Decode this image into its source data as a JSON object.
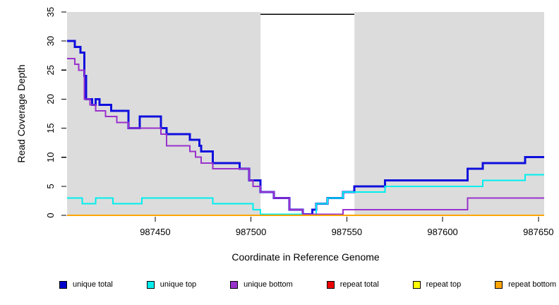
{
  "figure": {
    "xlabel": "Coordinate in Reference Genome",
    "ylabel": "Read Coverage Depth"
  },
  "legend": {
    "items": [
      {
        "label": "unique total",
        "color": "#0000cd"
      },
      {
        "label": "unique top",
        "color": "#00eeee"
      },
      {
        "label": "unique bottom",
        "color": "#9932cc"
      },
      {
        "label": "repeat total",
        "color": "#ee0000"
      },
      {
        "label": "repeat top",
        "color": "#ffff00"
      },
      {
        "label": "repeat bottom",
        "color": "#ffa500"
      }
    ]
  },
  "chart_data": {
    "type": "line",
    "subtype": "step",
    "title": "",
    "xlabel": "Coordinate in Reference Genome",
    "ylabel": "Read Coverage Depth",
    "xlim": [
      987404,
      987653
    ],
    "ylim": [
      0,
      35
    ],
    "x_ticks": [
      987450,
      987500,
      987550,
      987600,
      987650
    ],
    "y_ticks": [
      0,
      5,
      10,
      15,
      20,
      25,
      30,
      35
    ],
    "grid": false,
    "legend_position": "bottom",
    "background_regions": [
      {
        "name": "left-shaded-region",
        "from": 987404,
        "to": 987505,
        "color": "#dcdcdc"
      },
      {
        "name": "right-shaded-region",
        "from": 987554,
        "to": 987653,
        "color": "#dcdcdc"
      }
    ],
    "gap_marker": {
      "from": 987505,
      "to": 987554,
      "at_value": 35,
      "color": "#000000"
    },
    "series": [
      {
        "name": "unique total",
        "color": "#0f0fdd",
        "line_width": 3,
        "zero_lift": 1.5,
        "steps": [
          [
            987404,
            30
          ],
          [
            987408,
            29
          ],
          [
            987411,
            28
          ],
          [
            987413,
            24
          ],
          [
            987414,
            20
          ],
          [
            987417,
            19
          ],
          [
            987419,
            20
          ],
          [
            987421,
            19
          ],
          [
            987427,
            18
          ],
          [
            987436,
            15
          ],
          [
            987442,
            17
          ],
          [
            987453,
            15
          ],
          [
            987456,
            14
          ],
          [
            987468,
            13
          ],
          [
            987473,
            12
          ],
          [
            987474,
            11
          ],
          [
            987480,
            9
          ],
          [
            987494,
            8
          ],
          [
            987499,
            6
          ],
          [
            987505,
            4
          ],
          [
            987512,
            3
          ],
          [
            987520,
            1
          ],
          [
            987527,
            0
          ],
          [
            987532,
            1
          ],
          [
            987534,
            2
          ],
          [
            987540,
            3
          ],
          [
            987548,
            4
          ],
          [
            987554,
            5
          ],
          [
            987570,
            6
          ],
          [
            987613,
            8
          ],
          [
            987621,
            9
          ],
          [
            987643,
            10
          ]
        ]
      },
      {
        "name": "unique top",
        "color": "#00eeee",
        "line_width": 2,
        "zero_lift": 1.5,
        "steps": [
          [
            987404,
            3
          ],
          [
            987412,
            2
          ],
          [
            987419,
            3
          ],
          [
            987428,
            2
          ],
          [
            987443,
            3
          ],
          [
            987480,
            2
          ],
          [
            987501,
            1
          ],
          [
            987505,
            0
          ],
          [
            987534,
            2
          ],
          [
            987540,
            3
          ],
          [
            987548,
            4
          ],
          [
            987570,
            5
          ],
          [
            987621,
            6
          ],
          [
            987643,
            7
          ]
        ]
      },
      {
        "name": "unique bottom",
        "color": "#9932cc",
        "line_width": 2,
        "zero_lift": 1.5,
        "steps": [
          [
            987404,
            27
          ],
          [
            987408,
            26
          ],
          [
            987410,
            25
          ],
          [
            987413,
            20
          ],
          [
            987416,
            19
          ],
          [
            987419,
            18
          ],
          [
            987424,
            17
          ],
          [
            987430,
            16
          ],
          [
            987436,
            15
          ],
          [
            987453,
            14
          ],
          [
            987456,
            12
          ],
          [
            987468,
            11
          ],
          [
            987471,
            10
          ],
          [
            987474,
            9
          ],
          [
            987480,
            8
          ],
          [
            987499,
            6
          ],
          [
            987501,
            5
          ],
          [
            987505,
            4
          ],
          [
            987512,
            3
          ],
          [
            987520,
            1
          ],
          [
            987527,
            0
          ],
          [
            987548,
            1
          ],
          [
            987613,
            3
          ]
        ]
      },
      {
        "name": "repeat total",
        "color": "#ee0000",
        "line_width": 2,
        "zero_lift": 0,
        "steps": [
          [
            987404,
            0
          ]
        ]
      },
      {
        "name": "repeat top",
        "color": "#ffff00",
        "line_width": 2,
        "zero_lift": 0,
        "steps": [
          [
            987404,
            0
          ]
        ]
      },
      {
        "name": "repeat bottom",
        "color": "#ffa500",
        "line_width": 2,
        "zero_lift": 0,
        "steps": [
          [
            987404,
            0
          ]
        ]
      }
    ]
  }
}
